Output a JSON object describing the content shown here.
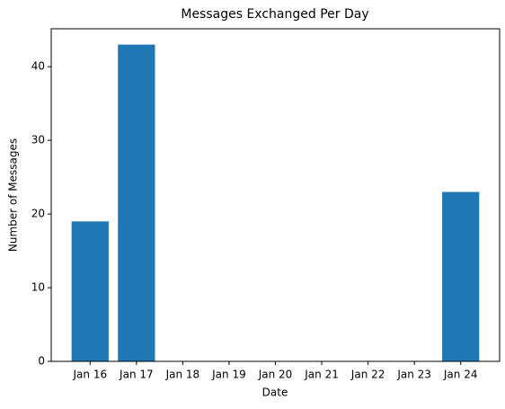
{
  "chart_data": {
    "type": "bar",
    "title": "Messages Exchanged Per Day",
    "x_label": "Date",
    "y_label": "Number of Messages",
    "categories": [
      "Jan 16",
      "Jan 17",
      "Jan 18",
      "Jan 19",
      "Jan 20",
      "Jan 21",
      "Jan 22",
      "Jan 23",
      "Jan 24"
    ],
    "values": [
      19,
      43,
      null,
      null,
      null,
      null,
      null,
      null,
      23
    ],
    "color": "#1f77b4",
    "ylim": [
      0,
      45.15
    ],
    "yticks": [
      0,
      10,
      20,
      30,
      40
    ]
  }
}
